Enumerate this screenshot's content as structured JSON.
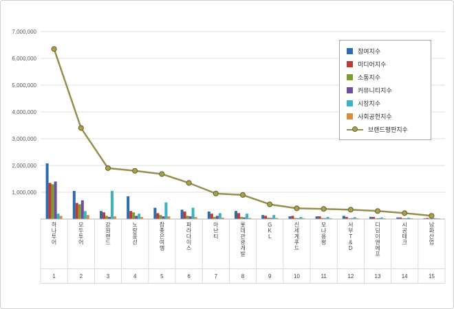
{
  "chart_data": {
    "type": "bar",
    "subtype": "grouped-bars-with-line-overlay",
    "title": "",
    "categories": [
      "하나투어",
      "모두투어",
      "강원랜드",
      "노랑풍선",
      "참좋은여행",
      "파라다이스",
      "아난티",
      "롯데관광개발",
      "GKL",
      "신세계푸드",
      "모나용평",
      "서부T&D",
      "디딤이앤에프",
      "시공테크",
      "남화산업"
    ],
    "category_numbers": [
      "1",
      "2",
      "3",
      "4",
      "5",
      "6",
      "7",
      "8",
      "9",
      "10",
      "11",
      "12",
      "13",
      "14",
      "15"
    ],
    "series": [
      {
        "key": "participation-index",
        "name": "참여지수",
        "type": "bar",
        "color": "#2F6BA8",
        "values": [
          2080000,
          1050000,
          300000,
          850000,
          420000,
          350000,
          280000,
          300000,
          150000,
          100000,
          100000,
          120000,
          80000,
          60000,
          30000
        ]
      },
      {
        "key": "media-index",
        "name": "미디어지수",
        "type": "bar",
        "color": "#BE3A34",
        "values": [
          1350000,
          600000,
          250000,
          300000,
          220000,
          280000,
          200000,
          220000,
          120000,
          120000,
          100000,
          80000,
          80000,
          60000,
          40000
        ]
      },
      {
        "key": "communication-index",
        "name": "소통지수",
        "type": "bar",
        "color": "#7E9B30",
        "values": [
          1300000,
          550000,
          120000,
          250000,
          150000,
          120000,
          80000,
          80000,
          50000,
          40000,
          40000,
          30000,
          30000,
          20000,
          10000
        ]
      },
      {
        "key": "community-index",
        "name": "커뮤니티지수",
        "type": "bar",
        "color": "#6C4F9E",
        "values": [
          1400000,
          700000,
          80000,
          120000,
          100000,
          100000,
          120000,
          60000,
          40000,
          30000,
          30000,
          30000,
          30000,
          20000,
          10000
        ]
      },
      {
        "key": "market-index",
        "name": "시장지수",
        "type": "bar",
        "color": "#3BB3C3",
        "values": [
          200000,
          300000,
          1050000,
          200000,
          620000,
          420000,
          220000,
          200000,
          150000,
          80000,
          80000,
          70000,
          60000,
          50000,
          30000
        ]
      },
      {
        "key": "social-contribution-index",
        "name": "사회공헌지수",
        "type": "bar",
        "color": "#D78E38",
        "values": [
          120000,
          150000,
          100000,
          80000,
          100000,
          80000,
          50000,
          40000,
          40000,
          30000,
          30000,
          20000,
          20000,
          10000,
          10000
        ]
      }
    ],
    "line_series": {
      "key": "brand-reputation-index",
      "name": "브랜드평판지수",
      "type": "line",
      "color": "#968F4B",
      "marker_fill": "#A89F54",
      "marker_stroke": "#6F6B30",
      "values": [
        6350000,
        3400000,
        1900000,
        1800000,
        1680000,
        1350000,
        950000,
        900000,
        550000,
        400000,
        380000,
        350000,
        300000,
        220000,
        120000
      ]
    },
    "ylim": [
      0,
      7000000
    ],
    "y_ticks": [
      1000000,
      2000000,
      3000000,
      4000000,
      5000000,
      6000000,
      7000000
    ],
    "y_tick_labels": [
      "1,000,000",
      "2,000,000",
      "3,000,000",
      "4,000,000",
      "5,000,000",
      "6,000,000",
      "7,000,000"
    ],
    "grid": true,
    "legend_position": "upper-right"
  }
}
